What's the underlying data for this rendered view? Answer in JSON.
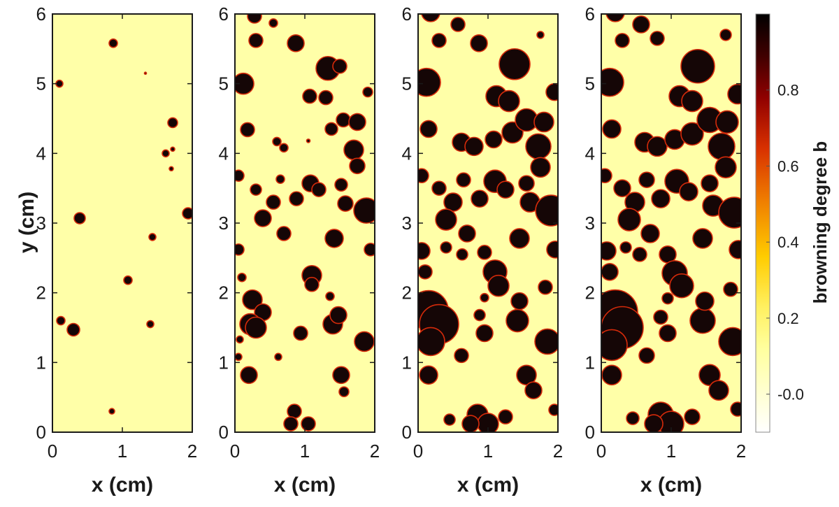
{
  "chart_data": {
    "type": "heatmap",
    "colors": {
      "background": "#FFFFA8",
      "spot": "#150606",
      "edge": "#D42A0A",
      "frame": "#1a1a1a"
    },
    "x_ticks": [
      "0",
      "1",
      "2"
    ],
    "y_ticks": [
      "0",
      "1",
      "2",
      "3",
      "4",
      "5",
      "6"
    ],
    "xlim": [
      0,
      2
    ],
    "ylim": [
      0,
      6
    ],
    "xlabel": "x (cm)",
    "ylabel": "y (cm)",
    "colorbar": {
      "label": "browning degree b",
      "ticks": [
        "-0.0",
        "0.2",
        "0.4",
        "0.6",
        "0.8"
      ],
      "range": [
        -0.1,
        1.0
      ]
    },
    "panels": [
      {
        "spots": [
          [
            0.87,
            5.58,
            0.06
          ],
          [
            0.1,
            5.0,
            0.05
          ],
          [
            1.33,
            5.15,
            0.015
          ],
          [
            1.72,
            4.44,
            0.07
          ],
          [
            1.72,
            4.06,
            0.03
          ],
          [
            1.62,
            4.0,
            0.05
          ],
          [
            1.7,
            3.78,
            0.03
          ],
          [
            0.39,
            3.07,
            0.08
          ],
          [
            1.94,
            3.14,
            0.08
          ],
          [
            1.43,
            2.8,
            0.05
          ],
          [
            1.08,
            2.18,
            0.06
          ],
          [
            0.12,
            1.6,
            0.06
          ],
          [
            0.3,
            1.47,
            0.09
          ],
          [
            1.4,
            1.55,
            0.05
          ],
          [
            0.85,
            0.3,
            0.04
          ]
        ]
      },
      {
        "spots": [
          [
            0.28,
            5.97,
            0.1
          ],
          [
            0.55,
            5.87,
            0.06
          ],
          [
            0.3,
            5.62,
            0.1
          ],
          [
            0.87,
            5.58,
            0.12
          ],
          [
            0.12,
            5.0,
            0.15
          ],
          [
            1.33,
            5.22,
            0.17
          ],
          [
            1.5,
            5.25,
            0.1
          ],
          [
            1.9,
            4.88,
            0.07
          ],
          [
            1.07,
            4.82,
            0.1
          ],
          [
            1.3,
            4.8,
            0.1
          ],
          [
            0.18,
            4.34,
            0.1
          ],
          [
            0.6,
            4.17,
            0.06
          ],
          [
            0.7,
            4.08,
            0.06
          ],
          [
            1.05,
            4.18,
            0.025
          ],
          [
            1.38,
            4.35,
            0.09
          ],
          [
            1.55,
            4.48,
            0.1
          ],
          [
            1.75,
            4.45,
            0.12
          ],
          [
            1.7,
            4.05,
            0.14
          ],
          [
            1.75,
            3.82,
            0.11
          ],
          [
            0.05,
            3.68,
            0.08
          ],
          [
            0.65,
            3.63,
            0.06
          ],
          [
            1.08,
            3.57,
            0.12
          ],
          [
            1.2,
            3.48,
            0.1
          ],
          [
            0.3,
            3.48,
            0.08
          ],
          [
            1.52,
            3.55,
            0.09
          ],
          [
            0.55,
            3.3,
            0.1
          ],
          [
            0.88,
            3.35,
            0.1
          ],
          [
            1.58,
            3.28,
            0.11
          ],
          [
            0.4,
            3.07,
            0.12
          ],
          [
            1.88,
            3.18,
            0.18
          ],
          [
            0.7,
            2.85,
            0.1
          ],
          [
            1.42,
            2.78,
            0.13
          ],
          [
            1.94,
            2.62,
            0.09
          ],
          [
            0.05,
            2.62,
            0.08
          ],
          [
            0.1,
            2.22,
            0.06
          ],
          [
            1.1,
            2.25,
            0.14
          ],
          [
            1.1,
            2.12,
            0.1
          ],
          [
            0.25,
            1.9,
            0.14
          ],
          [
            0.4,
            1.72,
            0.12
          ],
          [
            0.22,
            1.55,
            0.15
          ],
          [
            0.3,
            1.5,
            0.15
          ],
          [
            1.4,
            1.55,
            0.14
          ],
          [
            1.48,
            1.68,
            0.12
          ],
          [
            0.07,
            1.33,
            0.05
          ],
          [
            0.94,
            1.42,
            0.1
          ],
          [
            1.85,
            1.3,
            0.14
          ],
          [
            0.62,
            1.08,
            0.05
          ],
          [
            0.05,
            1.08,
            0.05
          ],
          [
            0.2,
            0.82,
            0.12
          ],
          [
            1.52,
            0.82,
            0.12
          ],
          [
            1.56,
            0.58,
            0.07
          ],
          [
            0.85,
            0.3,
            0.1
          ],
          [
            0.8,
            0.12,
            0.1
          ],
          [
            1.05,
            0.12,
            0.1
          ],
          [
            1.36,
            1.95,
            0.06
          ]
        ]
      },
      {
        "spots": [
          [
            0.18,
            6.02,
            0.13
          ],
          [
            0.57,
            5.85,
            0.1
          ],
          [
            0.3,
            5.62,
            0.1
          ],
          [
            0.87,
            5.58,
            0.12
          ],
          [
            1.75,
            5.7,
            0.05
          ],
          [
            0.12,
            5.02,
            0.2
          ],
          [
            1.38,
            5.28,
            0.22
          ],
          [
            1.95,
            4.88,
            0.12
          ],
          [
            1.12,
            4.82,
            0.15
          ],
          [
            1.3,
            4.75,
            0.15
          ],
          [
            0.15,
            4.35,
            0.12
          ],
          [
            0.62,
            4.16,
            0.13
          ],
          [
            0.8,
            4.1,
            0.13
          ],
          [
            1.08,
            4.2,
            0.12
          ],
          [
            1.35,
            4.3,
            0.15
          ],
          [
            1.55,
            4.48,
            0.16
          ],
          [
            1.8,
            4.45,
            0.14
          ],
          [
            1.72,
            4.1,
            0.18
          ],
          [
            1.75,
            3.8,
            0.14
          ],
          [
            0.05,
            3.68,
            0.1
          ],
          [
            0.65,
            3.62,
            0.1
          ],
          [
            1.1,
            3.6,
            0.16
          ],
          [
            1.25,
            3.48,
            0.12
          ],
          [
            0.3,
            3.5,
            0.1
          ],
          [
            1.55,
            3.57,
            0.11
          ],
          [
            0.5,
            3.3,
            0.13
          ],
          [
            0.88,
            3.35,
            0.12
          ],
          [
            1.6,
            3.3,
            0.14
          ],
          [
            0.4,
            3.05,
            0.15
          ],
          [
            1.9,
            3.18,
            0.22
          ],
          [
            0.7,
            2.85,
            0.12
          ],
          [
            1.45,
            2.78,
            0.14
          ],
          [
            1.96,
            2.62,
            0.12
          ],
          [
            0.05,
            2.6,
            0.12
          ],
          [
            0.4,
            2.65,
            0.08
          ],
          [
            0.63,
            2.55,
            0.08
          ],
          [
            0.95,
            2.58,
            0.1
          ],
          [
            0.1,
            2.3,
            0.1
          ],
          [
            1.1,
            2.3,
            0.17
          ],
          [
            1.15,
            2.1,
            0.15
          ],
          [
            0.15,
            1.75,
            0.28
          ],
          [
            0.3,
            1.55,
            0.28
          ],
          [
            0.18,
            1.3,
            0.2
          ],
          [
            1.42,
            1.6,
            0.16
          ],
          [
            1.45,
            1.88,
            0.12
          ],
          [
            0.95,
            1.42,
            0.12
          ],
          [
            0.88,
            1.68,
            0.08
          ],
          [
            1.82,
            2.08,
            0.1
          ],
          [
            1.85,
            1.3,
            0.18
          ],
          [
            0.62,
            1.1,
            0.1
          ],
          [
            0.15,
            0.82,
            0.13
          ],
          [
            1.55,
            0.82,
            0.14
          ],
          [
            1.65,
            0.6,
            0.12
          ],
          [
            0.45,
            0.18,
            0.08
          ],
          [
            0.85,
            0.25,
            0.15
          ],
          [
            1.0,
            0.12,
            0.15
          ],
          [
            0.75,
            0.12,
            0.12
          ],
          [
            1.25,
            0.22,
            0.1
          ],
          [
            1.95,
            0.32,
            0.08
          ],
          [
            0.95,
            1.93,
            0.06
          ]
        ]
      },
      {
        "spots": [
          [
            0.2,
            6.02,
            0.13
          ],
          [
            0.57,
            5.85,
            0.12
          ],
          [
            0.8,
            5.65,
            0.1
          ],
          [
            0.3,
            5.62,
            0.1
          ],
          [
            1.78,
            5.7,
            0.08
          ],
          [
            0.12,
            5.02,
            0.2
          ],
          [
            1.38,
            5.25,
            0.24
          ],
          [
            1.95,
            4.85,
            0.14
          ],
          [
            1.12,
            4.82,
            0.15
          ],
          [
            1.3,
            4.75,
            0.15
          ],
          [
            0.15,
            4.35,
            0.13
          ],
          [
            0.62,
            4.16,
            0.14
          ],
          [
            0.8,
            4.1,
            0.14
          ],
          [
            1.05,
            4.2,
            0.14
          ],
          [
            1.3,
            4.28,
            0.16
          ],
          [
            1.55,
            4.48,
            0.18
          ],
          [
            1.8,
            4.45,
            0.16
          ],
          [
            1.72,
            4.1,
            0.19
          ],
          [
            1.78,
            3.8,
            0.15
          ],
          [
            0.05,
            3.68,
            0.1
          ],
          [
            0.65,
            3.62,
            0.11
          ],
          [
            1.08,
            3.6,
            0.17
          ],
          [
            1.25,
            3.45,
            0.13
          ],
          [
            0.3,
            3.5,
            0.12
          ],
          [
            1.55,
            3.57,
            0.12
          ],
          [
            0.48,
            3.3,
            0.14
          ],
          [
            0.85,
            3.35,
            0.13
          ],
          [
            1.6,
            3.25,
            0.15
          ],
          [
            0.4,
            3.05,
            0.16
          ],
          [
            1.9,
            3.15,
            0.22
          ],
          [
            0.7,
            2.85,
            0.13
          ],
          [
            1.45,
            2.78,
            0.14
          ],
          [
            1.96,
            2.62,
            0.13
          ],
          [
            0.08,
            2.6,
            0.13
          ],
          [
            0.35,
            2.65,
            0.08
          ],
          [
            0.55,
            2.55,
            0.1
          ],
          [
            0.95,
            2.55,
            0.12
          ],
          [
            0.12,
            2.3,
            0.12
          ],
          [
            1.05,
            2.28,
            0.18
          ],
          [
            1.15,
            2.1,
            0.17
          ],
          [
            0.2,
            1.72,
            0.32
          ],
          [
            0.3,
            1.5,
            0.3
          ],
          [
            0.15,
            1.25,
            0.22
          ],
          [
            1.45,
            1.6,
            0.18
          ],
          [
            1.48,
            1.88,
            0.13
          ],
          [
            0.95,
            1.42,
            0.12
          ],
          [
            0.85,
            1.65,
            0.1
          ],
          [
            1.85,
            2.05,
            0.1
          ],
          [
            1.88,
            1.3,
            0.2
          ],
          [
            0.65,
            1.1,
            0.11
          ],
          [
            0.15,
            0.82,
            0.14
          ],
          [
            1.55,
            0.82,
            0.15
          ],
          [
            1.68,
            0.6,
            0.14
          ],
          [
            0.45,
            0.2,
            0.09
          ],
          [
            0.85,
            0.25,
            0.18
          ],
          [
            1.0,
            0.12,
            0.18
          ],
          [
            0.75,
            0.12,
            0.13
          ],
          [
            1.3,
            0.22,
            0.11
          ],
          [
            1.95,
            0.33,
            0.1
          ],
          [
            0.95,
            1.92,
            0.08
          ]
        ]
      }
    ]
  }
}
